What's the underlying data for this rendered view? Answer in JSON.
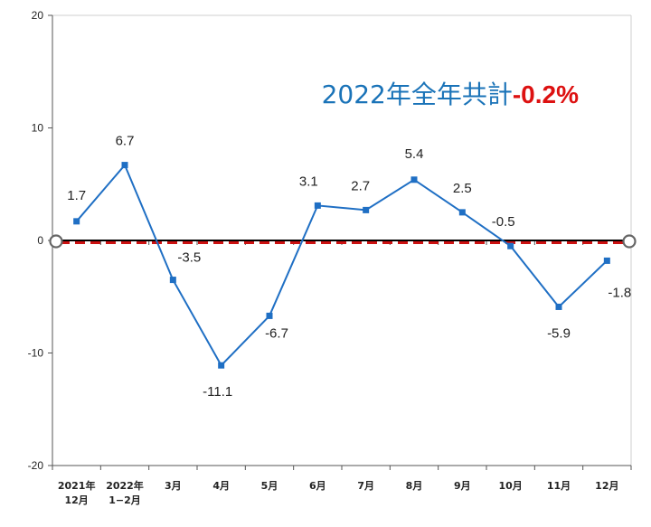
{
  "chart_data": {
    "type": "line",
    "categories": [
      [
        "2021年",
        "12月"
      ],
      [
        "2022年",
        "1−2月"
      ],
      [
        "3月"
      ],
      [
        "4月"
      ],
      [
        "5月"
      ],
      [
        "6月"
      ],
      [
        "7月"
      ],
      [
        "8月"
      ],
      [
        "9月"
      ],
      [
        "10月"
      ],
      [
        "11月"
      ],
      [
        "12月"
      ]
    ],
    "series": [
      {
        "values": [
          1.7,
          6.7,
          -3.5,
          -11.1,
          -6.7,
          3.1,
          2.7,
          5.4,
          2.5,
          -0.5,
          -5.9,
          -1.8
        ],
        "data_labels": [
          "1.7",
          "6.7",
          "-3.5",
          "-11.1",
          "-6.7",
          "3.1",
          "2.7",
          "5.4",
          "2.5",
          "-0.5",
          "-5.9",
          "-1.8"
        ],
        "color": "#1f6fc4"
      }
    ],
    "ylim": [
      -20,
      20
    ],
    "yticks": [
      20,
      10,
      0,
      -10,
      -20
    ],
    "ytick_labels": [
      "20",
      "10",
      "0",
      "-10",
      "-20"
    ],
    "reference_line": {
      "value": -0.2,
      "style": "dashed",
      "color": "#cc1111"
    },
    "annotation": {
      "prefix": "2022年全年共計",
      "value": "-0.2%",
      "prefix_color": "#1a73b8",
      "value_color": "#dd1111"
    },
    "grid": false,
    "legend": "none",
    "zero_line_color": "#000000"
  }
}
